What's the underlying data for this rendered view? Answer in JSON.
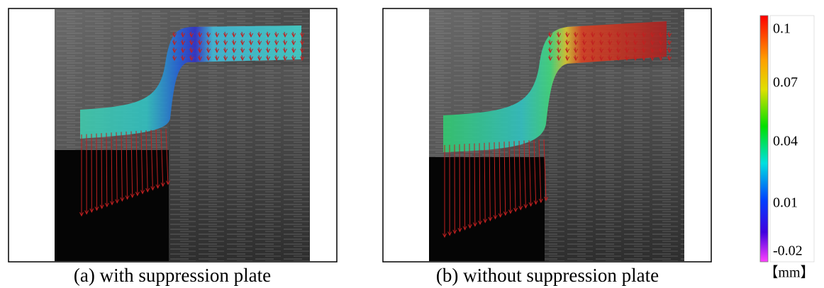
{
  "panels": [
    {
      "caption": "(a)  with suppression plate"
    },
    {
      "caption": "(b) without suppression plate"
    }
  ],
  "colorbar": {
    "ticks": [
      "0.1",
      "0.07",
      "0.04",
      "0.01",
      "-0.02"
    ],
    "unit": "【mm】"
  }
}
